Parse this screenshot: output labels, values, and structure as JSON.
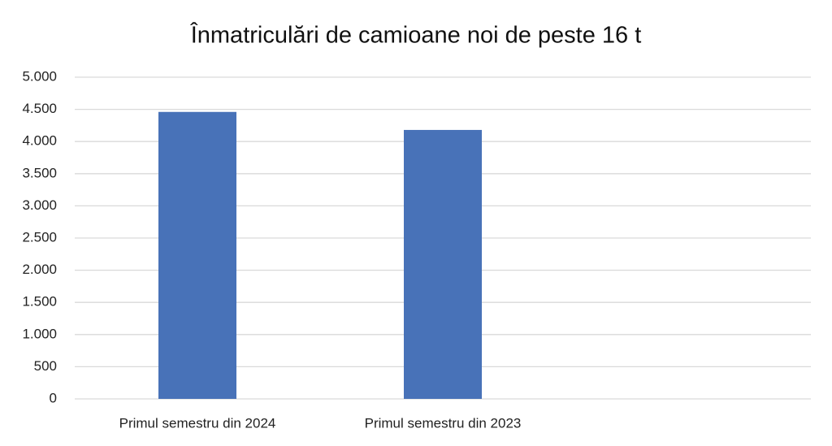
{
  "chart_data": {
    "type": "bar",
    "title": "Înmatriculări de camioane noi de peste 16 t",
    "categories": [
      "Primul semestru din 2024",
      "Primul semestru din 2023",
      null
    ],
    "values": [
      4460,
      4180,
      null
    ],
    "color": "#4872b8",
    "ylim": [
      0,
      5000
    ],
    "yticks": [
      0,
      500,
      {
        "value": 1000,
        "label": "1.000"
      },
      {
        "value": 1500,
        "label": "1.500"
      },
      {
        "value": 2000,
        "label": "2.000"
      },
      {
        "value": 2500,
        "label": "2.500"
      },
      {
        "value": 3000,
        "label": "3.000"
      },
      {
        "value": 3500,
        "label": "3.500"
      },
      {
        "value": 4000,
        "label": "4.000"
      },
      {
        "value": 4500,
        "label": "4.500"
      },
      {
        "value": 5000,
        "label": "5.000"
      }
    ],
    "grid": true
  }
}
